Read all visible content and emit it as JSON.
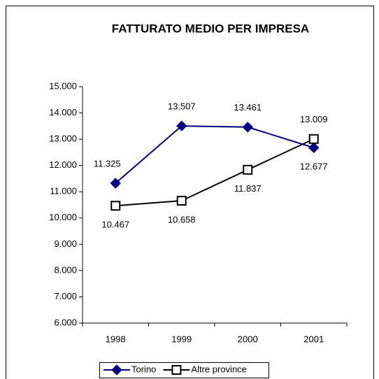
{
  "chart_data": {
    "type": "line",
    "title": "FATTURATO MEDIO PER IMPRESA",
    "categories": [
      "1998",
      "1999",
      "2000",
      "2001"
    ],
    "series": [
      {
        "name": "Torino",
        "color": "#000080",
        "marker": "diamond",
        "values": [
          11325,
          13507,
          13461,
          12677
        ],
        "value_labels": [
          "11.325",
          "13.507",
          "13.461",
          "12.677"
        ]
      },
      {
        "name": "Altre province",
        "color": "#000000",
        "marker": "square",
        "values": [
          10467,
          10658,
          11837,
          13009
        ],
        "value_labels": [
          "10.467",
          "10.658",
          "11.837",
          "13.009"
        ]
      }
    ],
    "ylim": [
      6000,
      15000
    ],
    "yticks": [
      {
        "value": 6000,
        "label": "6.000"
      },
      {
        "value": 7000,
        "label": "7.000"
      },
      {
        "value": 8000,
        "label": "8.000"
      },
      {
        "value": 9000,
        "label": "9.000"
      },
      {
        "value": 10000,
        "label": "10.000"
      },
      {
        "value": 11000,
        "label": "11.000"
      },
      {
        "value": 12000,
        "label": "12.000"
      },
      {
        "value": 13000,
        "label": "13.000"
      },
      {
        "value": 14000,
        "label": "14.000"
      },
      {
        "value": 15000,
        "label": "15.000"
      }
    ],
    "grid": false,
    "legend": "bottom"
  }
}
